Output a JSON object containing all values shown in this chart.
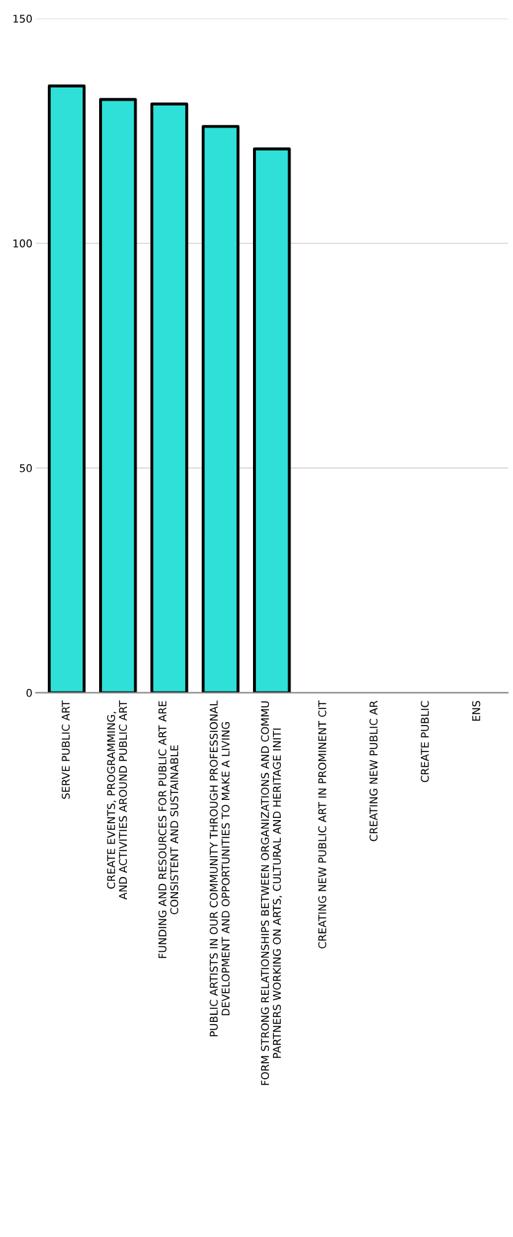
{
  "chart_data": {
    "type": "bar",
    "categories": [
      "SERVE PUBLIC ART",
      "CREATE EVENTS, PROGRAMMING,\nAND ACTIVITIES AROUND PUBLIC ART",
      "FUNDING AND RESOURCES FOR PUBLIC ART ARE\nCONSISTENT AND SUSTAINABLE",
      "PUBLIC ARTISTS IN OUR COMMUNITY THROUGH PROFESSIONAL\nDEVELOPMENT AND OPPORTUNITIES TO MAKE A LIVING",
      "FORM STRONG RELATIONSHIPS BETWEEN ORGANIZATIONS AND COMMU\nPARTNERS WORKING ON ARTS, CULTURAL AND HERITAGE INITI",
      "CREATING NEW PUBLIC ART IN PROMINENT CIT",
      "CREATING NEW PUBLIC AR",
      "CREATE PUBLIC",
      "ENS"
    ],
    "values": [
      135,
      132,
      131,
      126,
      121,
      null,
      null,
      null,
      null
    ],
    "color": "#2ee0d8",
    "ylim": [
      0,
      150
    ],
    "yticks": [
      0,
      50,
      100,
      150
    ],
    "grid": "y"
  }
}
